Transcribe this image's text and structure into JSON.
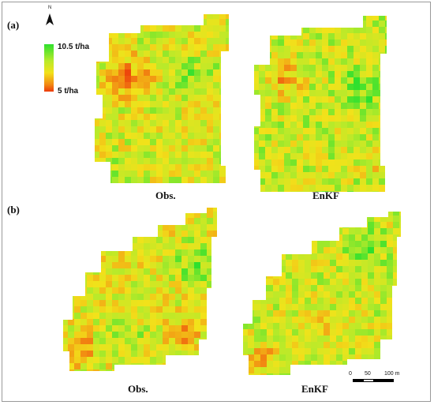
{
  "panels": {
    "a": {
      "label": "(a)",
      "obs_caption": "Obs.",
      "enkf_caption": "EnKF"
    },
    "b": {
      "label": "(b)",
      "obs_caption": "Obs.",
      "enkf_caption": "EnKF"
    }
  },
  "north_arrow": {
    "letter": "N",
    "icon": "north-arrow-icon"
  },
  "legend": {
    "max_label": "10.5 t/ha",
    "min_label": "5 t/ha",
    "colors": {
      "high": "#2ee02e",
      "mid_high": "#b8ea2a",
      "mid": "#f2e21a",
      "mid_low": "#f28a12",
      "low": "#ec3b0a"
    }
  },
  "scale_bar": {
    "ticks": [
      "0",
      "50",
      "100 m"
    ]
  }
}
